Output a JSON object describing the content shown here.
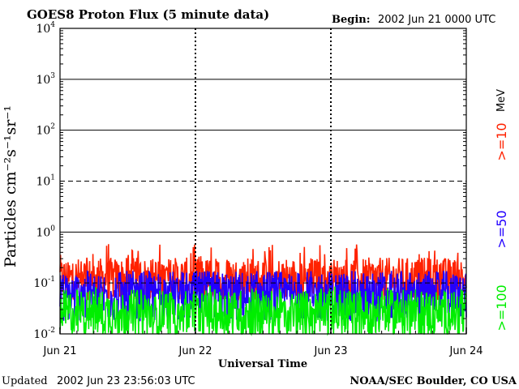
{
  "chart_data": {
    "type": "line",
    "title": "GOES8 Proton Flux (5 minute data)",
    "begin_label": "Begin:",
    "begin_value": "2002 Jun 21 0000 UTC",
    "xlabel": "Universal Time",
    "ylabel": "Particles cm⁻²s⁻¹sr⁻¹",
    "yscale": "log",
    "ylim": [
      0.01,
      10000
    ],
    "yticks": [
      {
        "value": 10000,
        "base": "10",
        "exp": "4"
      },
      {
        "value": 1000,
        "base": "10",
        "exp": "3"
      },
      {
        "value": 100,
        "base": "10",
        "exp": "2"
      },
      {
        "value": 10,
        "base": "10",
        "exp": "1"
      },
      {
        "value": 1,
        "base": "10",
        "exp": "0"
      },
      {
        "value": 0.1,
        "base": "10",
        "exp": "-1"
      },
      {
        "value": 0.01,
        "base": "10",
        "exp": "-2"
      }
    ],
    "xlim": [
      "2002-06-21",
      "2002-06-24"
    ],
    "xticks": [
      "Jun 21",
      "Jun 22",
      "Jun 23",
      "Jun 24"
    ],
    "grid": true,
    "energy_unit": "MeV",
    "series": [
      {
        "name": ">=10",
        "color": "#ff2200",
        "baseline": 0.12,
        "spread": 0.42,
        "spike_max": 0.6
      },
      {
        "name": ">=50",
        "color": "#2200ff",
        "baseline": 0.055,
        "spread": 0.5,
        "spike_max": 0.15
      },
      {
        "name": ">=100",
        "color": "#00ee00",
        "baseline": 0.025,
        "spread": 0.48,
        "spike_max": 0.09
      }
    ]
  },
  "footer": {
    "updated_label": "Updated",
    "updated_value": "2002 Jun 23 23:56:03 UTC",
    "credit": "NOAA/SEC Boulder, CO USA"
  }
}
